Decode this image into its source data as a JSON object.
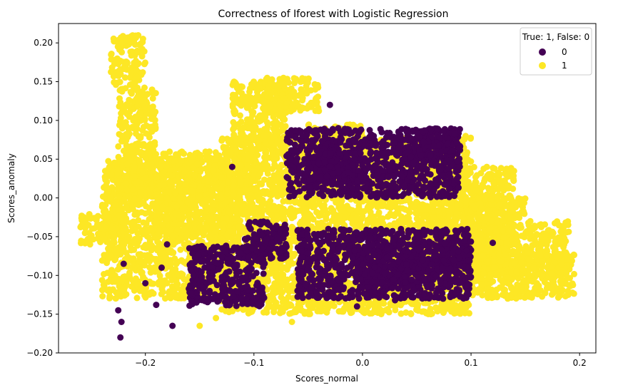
{
  "chart_data": {
    "type": "scatter",
    "title": "Correctness of Iforest with Logistic Regression",
    "xlabel": "Scores_normal",
    "ylabel": "Scores_anomaly",
    "xlim": [
      -0.28,
      0.215
    ],
    "ylim": [
      -0.2,
      0.225
    ],
    "xticks": [
      -0.2,
      -0.1,
      0.0,
      0.1,
      0.2
    ],
    "xtick_labels": [
      "−0.2",
      "−0.1",
      "0.0",
      "0.1",
      "0.2"
    ],
    "yticks": [
      -0.2,
      -0.15,
      -0.1,
      -0.05,
      0.0,
      0.05,
      0.1,
      0.15,
      0.2
    ],
    "ytick_labels": [
      "−0.20",
      "−0.15",
      "−0.10",
      "−0.05",
      "0.00",
      "0.05",
      "0.10",
      "0.15",
      "0.20"
    ],
    "grid": false,
    "legend": {
      "title": "True: 1, False: 0",
      "placement": "top-right",
      "entries": [
        {
          "label": "0",
          "color": "#440154"
        },
        {
          "label": "1",
          "color": "#fde725"
        }
      ]
    },
    "series": [
      {
        "label": "1",
        "color": "#fde725",
        "clusters": [
          {
            "x": [
              -0.232,
              -0.2
            ],
            "y": [
              0.14,
              0.21
            ]
          },
          {
            "x": [
              -0.225,
              -0.19
            ],
            "y": [
              0.0,
              0.14
            ]
          },
          {
            "x": [
              -0.26,
              -0.22
            ],
            "y": [
              -0.06,
              -0.02
            ]
          },
          {
            "x": [
              -0.24,
              -0.12
            ],
            "y": [
              -0.13,
              0.05
            ]
          },
          {
            "x": [
              -0.19,
              -0.1
            ],
            "y": [
              -0.05,
              0.06
            ]
          },
          {
            "x": [
              -0.12,
              -0.07
            ],
            "y": [
              0.07,
              0.15
            ]
          },
          {
            "x": [
              -0.09,
              -0.04
            ],
            "y": [
              0.11,
              0.155
            ]
          },
          {
            "x": [
              -0.13,
              0.1
            ],
            "y": [
              -0.15,
              0.08
            ]
          },
          {
            "x": [
              -0.05,
              0.0
            ],
            "y": [
              0.05,
              0.095
            ]
          },
          {
            "x": [
              0.06,
              0.14
            ],
            "y": [
              -0.1,
              0.04
            ]
          },
          {
            "x": [
              0.1,
              0.195
            ],
            "y": [
              -0.13,
              -0.07
            ]
          },
          {
            "x": [
              0.05,
              0.19
            ],
            "y": [
              -0.1,
              -0.03
            ]
          },
          {
            "x": [
              0.1,
              0.15
            ],
            "y": [
              -0.03,
              0.0
            ]
          }
        ],
        "isolated": [
          [
            -0.15,
            -0.165
          ],
          [
            -0.18,
            -0.11
          ],
          [
            -0.135,
            -0.155
          ],
          [
            -0.065,
            -0.16
          ],
          [
            -0.205,
            -0.12
          ],
          [
            0.05,
            -0.13
          ]
        ]
      },
      {
        "label": "0",
        "color": "#440154",
        "clusters": [
          {
            "x": [
              -0.11,
              -0.07
            ],
            "y": [
              -0.08,
              -0.03
            ]
          },
          {
            "x": [
              -0.16,
              -0.09
            ],
            "y": [
              -0.14,
              -0.06
            ]
          },
          {
            "x": [
              -0.07,
              0.09
            ],
            "y": [
              0.0,
              0.09
            ]
          },
          {
            "x": [
              -0.06,
              0.1
            ],
            "y": [
              -0.13,
              -0.04
            ]
          },
          {
            "x": [
              0.0,
              0.1
            ],
            "y": [
              -0.11,
              -0.06
            ]
          },
          {
            "x": [
              -0.05,
              0.0
            ],
            "y": [
              0.02,
              0.06
            ]
          },
          {
            "x": [
              0.04,
              0.09
            ],
            "y": [
              0.04,
              0.09
            ]
          }
        ],
        "isolated": [
          [
            -0.225,
            -0.145
          ],
          [
            -0.222,
            -0.16
          ],
          [
            -0.223,
            -0.18
          ],
          [
            -0.175,
            -0.165
          ],
          [
            -0.19,
            -0.138
          ],
          [
            -0.2,
            -0.11
          ],
          [
            -0.22,
            -0.085
          ],
          [
            -0.185,
            -0.09
          ],
          [
            -0.12,
            0.04
          ],
          [
            -0.18,
            -0.06
          ],
          [
            0.12,
            -0.058
          ],
          [
            0.03,
            -0.132
          ],
          [
            -0.005,
            -0.14
          ],
          [
            -0.03,
            0.12
          ]
        ]
      }
    ]
  }
}
